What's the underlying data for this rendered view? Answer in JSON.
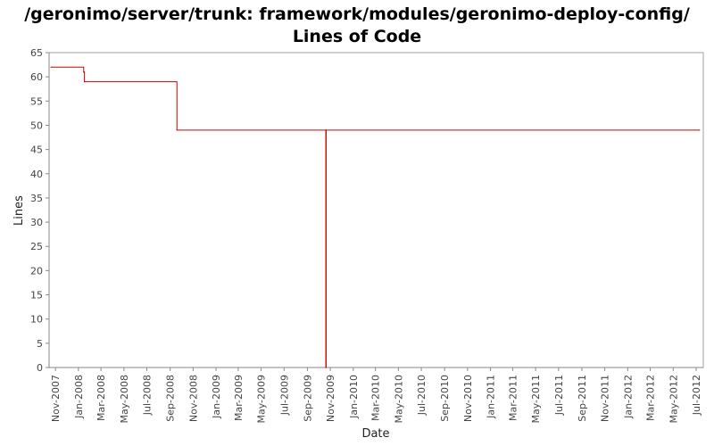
{
  "chart_data": {
    "type": "line",
    "title": "/geronimo/server/trunk: framework/modules/geronimo-deploy-config/",
    "subtitle": "Lines of Code",
    "xlabel": "Date",
    "ylabel": "Lines",
    "ylim": [
      0,
      65
    ],
    "yticks": [
      0,
      5,
      10,
      15,
      20,
      25,
      30,
      35,
      40,
      45,
      50,
      55,
      60,
      65
    ],
    "xlim": [
      "2007-10-15",
      "2012-07-20"
    ],
    "xticks": [
      {
        "date": "2007-11-01",
        "label": "Nov-2007"
      },
      {
        "date": "2008-01-01",
        "label": "Jan-2008"
      },
      {
        "date": "2008-03-01",
        "label": "Mar-2008"
      },
      {
        "date": "2008-05-01",
        "label": "May-2008"
      },
      {
        "date": "2008-07-01",
        "label": "Jul-2008"
      },
      {
        "date": "2008-09-01",
        "label": "Sep-2008"
      },
      {
        "date": "2008-11-01",
        "label": "Nov-2008"
      },
      {
        "date": "2009-01-01",
        "label": "Jan-2009"
      },
      {
        "date": "2009-03-01",
        "label": "Mar-2009"
      },
      {
        "date": "2009-05-01",
        "label": "May-2009"
      },
      {
        "date": "2009-07-01",
        "label": "Jul-2009"
      },
      {
        "date": "2009-09-01",
        "label": "Sep-2009"
      },
      {
        "date": "2009-11-01",
        "label": "Nov-2009"
      },
      {
        "date": "2010-01-01",
        "label": "Jan-2010"
      },
      {
        "date": "2010-03-01",
        "label": "Mar-2010"
      },
      {
        "date": "2010-05-01",
        "label": "May-2010"
      },
      {
        "date": "2010-07-01",
        "label": "Jul-2010"
      },
      {
        "date": "2010-09-01",
        "label": "Sep-2010"
      },
      {
        "date": "2010-11-01",
        "label": "Nov-2010"
      },
      {
        "date": "2011-01-01",
        "label": "Jan-2011"
      },
      {
        "date": "2011-03-01",
        "label": "Mar-2011"
      },
      {
        "date": "2011-05-01",
        "label": "May-2011"
      },
      {
        "date": "2011-07-01",
        "label": "Jul-2011"
      },
      {
        "date": "2011-09-01",
        "label": "Sep-2011"
      },
      {
        "date": "2011-11-01",
        "label": "Nov-2011"
      },
      {
        "date": "2012-01-01",
        "label": "Jan-2012"
      },
      {
        "date": "2012-03-01",
        "label": "Mar-2012"
      },
      {
        "date": "2012-05-01",
        "label": "May-2012"
      },
      {
        "date": "2012-07-01",
        "label": "Jul-2012"
      }
    ],
    "series": [
      {
        "color": "#cc0000",
        "step": true,
        "points": [
          {
            "x": "2007-10-20",
            "y": 62
          },
          {
            "x": "2008-01-15",
            "y": 61
          },
          {
            "x": "2008-01-17",
            "y": 59
          },
          {
            "x": "2008-09-19",
            "y": 49
          },
          {
            "x": "2009-10-20",
            "y": 0
          },
          {
            "x": "2009-10-21",
            "y": 49
          },
          {
            "x": "2012-07-10",
            "y": 49
          }
        ]
      }
    ],
    "grid": false,
    "legend": "none",
    "colors": {
      "plot_background": "#ffffff",
      "plot_border": "#a0a0a0",
      "axis": "#888888"
    }
  }
}
